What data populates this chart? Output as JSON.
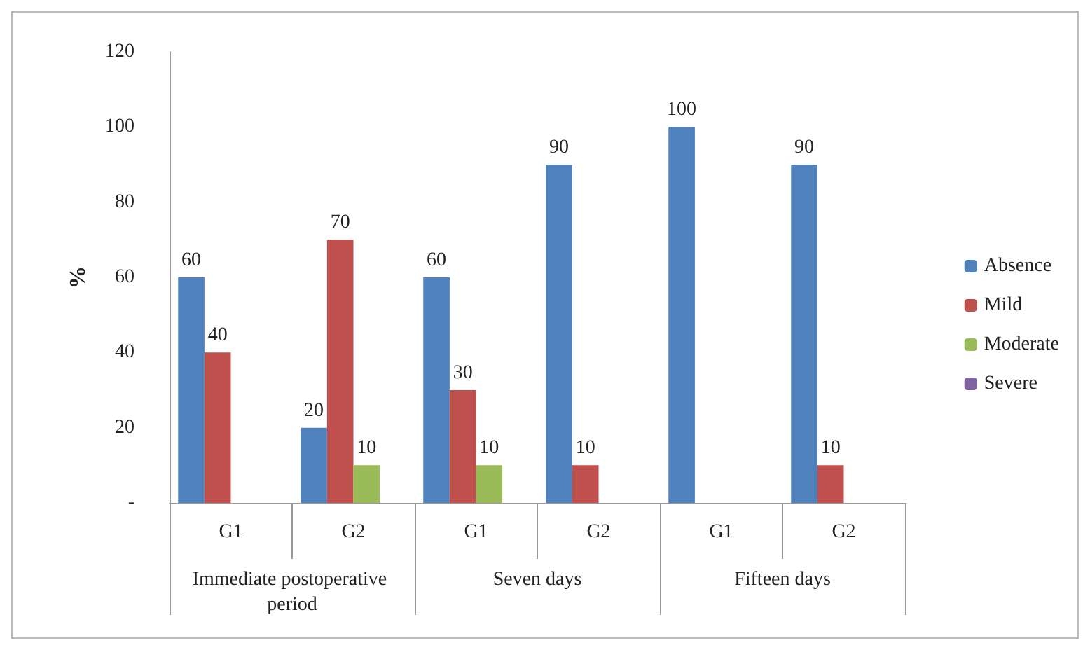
{
  "chart_data": {
    "type": "bar",
    "ylabel": "%",
    "categories": [
      "G1",
      "G2",
      "G1",
      "G2",
      "G1",
      "G2"
    ],
    "annotations": [
      "Immediate postoperative period",
      "Seven days",
      "Fifteen days"
    ],
    "series": [
      {
        "name": "Absence",
        "color": "#4f81bd",
        "values": [
          60,
          20,
          60,
          90,
          100,
          90
        ]
      },
      {
        "name": "Mild",
        "color": "#c0504d",
        "values": [
          40,
          70,
          30,
          10,
          null,
          10
        ]
      },
      {
        "name": "Moderate",
        "color": "#9bbb59",
        "values": [
          null,
          10,
          10,
          null,
          null,
          null
        ]
      },
      {
        "name": "Severe",
        "color": "#8064a2",
        "values": [
          null,
          null,
          null,
          null,
          null,
          null
        ]
      }
    ],
    "ylim": [
      0,
      120
    ],
    "yticks": [
      {
        "value": 0,
        "label": "-"
      },
      20,
      40,
      60,
      80,
      100,
      120
    ],
    "data_labels": true,
    "grid": false,
    "legend": "right"
  }
}
